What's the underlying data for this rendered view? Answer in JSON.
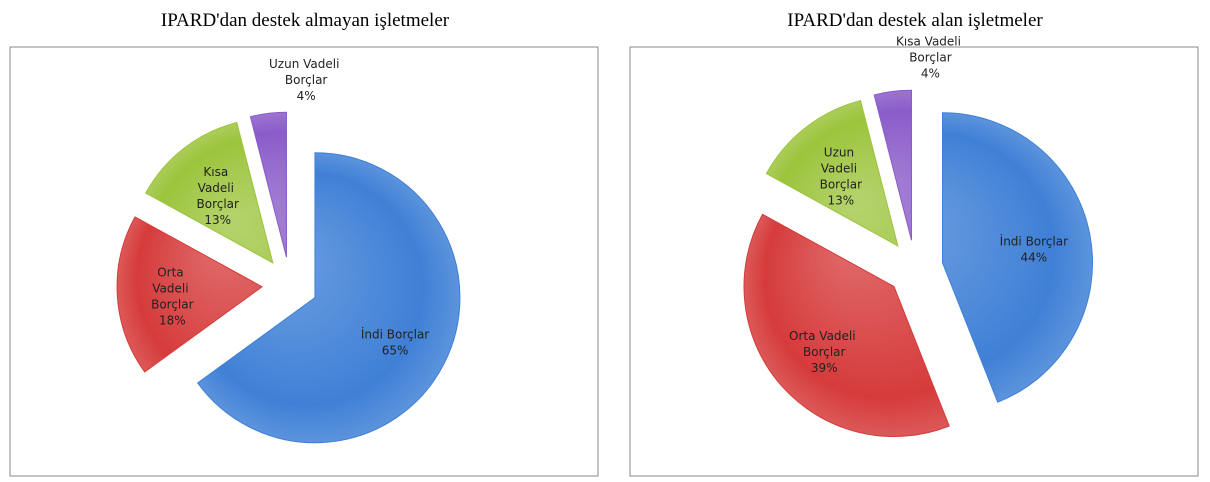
{
  "chart_data": [
    {
      "type": "pie",
      "title": "IPARD'dan destek almayan işletmeler",
      "categories": [
        "İndi Borçlar",
        "Orta Vadeli Borçlar",
        "Kısa Vadeli Borçlar",
        "Uzun Vadeli Borçlar"
      ],
      "values": [
        65,
        18,
        13,
        4
      ],
      "value_labels": [
        "65%",
        "18%",
        "13%",
        "4%"
      ],
      "colors": [
        "#3f80d6",
        "#d63b3b",
        "#9cc43c",
        "#8a5cc9"
      ]
    },
    {
      "type": "pie",
      "title": "IPARD'dan destek alan işletmeler",
      "categories": [
        "İndi Borçlar",
        "Orta Vadeli Borçlar",
        "Uzun Vadeli Borçlar",
        "Kısa Vadeli Borçlar"
      ],
      "values": [
        44,
        39,
        13,
        4
      ],
      "value_labels": [
        "44%",
        "39%",
        "13%",
        "4%"
      ],
      "colors": [
        "#3f80d6",
        "#d63b3b",
        "#9cc43c",
        "#8a5cc9"
      ]
    }
  ]
}
